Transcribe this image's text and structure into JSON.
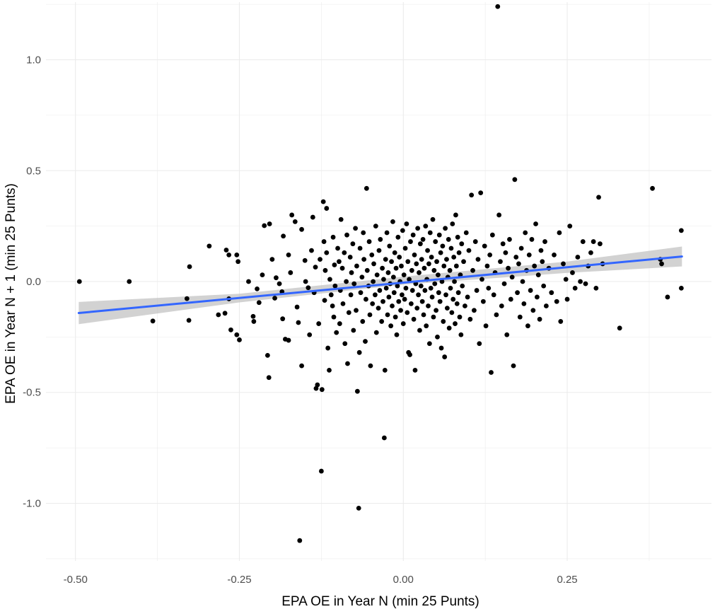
{
  "chart_data": {
    "type": "scatter",
    "xlabel": "EPA OE in Year N (min 25 Punts)",
    "ylabel": "EPA OE in Year N + 1 (min 25 Punts)",
    "xlim": [
      -0.545,
      0.47
    ],
    "ylim": [
      -1.26,
      1.26
    ],
    "x_ticks": [
      -0.5,
      -0.25,
      0.0,
      0.25
    ],
    "x_tick_labels": [
      "-0.50",
      "-0.25",
      "0.00",
      "0.25"
    ],
    "y_ticks": [
      -1.0,
      -0.5,
      0.0,
      0.5,
      1.0
    ],
    "y_tick_labels": [
      "-1.0",
      "-0.5",
      "0.0",
      "0.5",
      "1.0"
    ],
    "grid": true,
    "theme": "minimal",
    "colors": {
      "points": "#000000",
      "trend": "#3366ff",
      "band": "#bfbfbf",
      "grid": "#ebebeb"
    },
    "trend_line": {
      "x": [
        -0.495,
        0.425
      ],
      "y": [
        -0.142,
        0.113
      ]
    },
    "confidence_band": {
      "x": [
        -0.495,
        -0.25,
        0.0,
        0.25,
        0.425
      ],
      "upper": [
        -0.092,
        -0.055,
        0.022,
        0.09,
        0.158
      ],
      "lower": [
        -0.192,
        -0.094,
        -0.014,
        0.039,
        0.068
      ]
    },
    "points": [
      [
        -0.494,
        0.0
      ],
      [
        -0.418,
        0.0
      ],
      [
        -0.382,
        -0.178
      ],
      [
        -0.326,
        0.067
      ],
      [
        -0.33,
        -0.077
      ],
      [
        -0.327,
        -0.175
      ],
      [
        -0.296,
        0.16
      ],
      [
        -0.282,
        -0.15
      ],
      [
        -0.272,
        -0.143
      ],
      [
        -0.27,
        0.142
      ],
      [
        -0.266,
        0.12
      ],
      [
        -0.266,
        -0.078
      ],
      [
        -0.263,
        -0.218
      ],
      [
        -0.254,
        0.12
      ],
      [
        -0.252,
        0.09
      ],
      [
        -0.254,
        -0.24
      ],
      [
        -0.25,
        -0.263
      ],
      [
        -0.236,
        0.0
      ],
      [
        -0.229,
        -0.157
      ],
      [
        -0.228,
        -0.18
      ],
      [
        -0.223,
        -0.033
      ],
      [
        -0.22,
        -0.095
      ],
      [
        -0.215,
        0.03
      ],
      [
        -0.212,
        0.252
      ],
      [
        -0.207,
        -0.333
      ],
      [
        -0.205,
        -0.433
      ],
      [
        -0.204,
        0.26
      ],
      [
        -0.2,
        0.1
      ],
      [
        -0.196,
        -0.075
      ],
      [
        -0.194,
        0.017
      ],
      [
        -0.189,
        -0.01
      ],
      [
        -0.185,
        -0.046
      ],
      [
        -0.184,
        -0.168
      ],
      [
        -0.183,
        0.205
      ],
      [
        -0.18,
        -0.26
      ],
      [
        -0.175,
        -0.265
      ],
      [
        -0.175,
        0.12
      ],
      [
        -0.172,
        0.04
      ],
      [
        -0.17,
        0.3
      ],
      [
        -0.165,
        0.27
      ],
      [
        -0.162,
        -0.115
      ],
      [
        -0.16,
        -0.185
      ],
      [
        -0.158,
        -1.168
      ],
      [
        -0.155,
        -0.38
      ],
      [
        -0.155,
        0.235
      ],
      [
        -0.15,
        0.095
      ],
      [
        -0.149,
        0.0
      ],
      [
        -0.145,
        -0.028
      ],
      [
        -0.143,
        -0.24
      ],
      [
        -0.14,
        0.14
      ],
      [
        -0.138,
        0.29
      ],
      [
        -0.136,
        -0.05
      ],
      [
        -0.134,
        0.065
      ],
      [
        -0.133,
        -0.482
      ],
      [
        -0.131,
        -0.466
      ],
      [
        -0.129,
        -0.19
      ],
      [
        -0.127,
        0.1
      ],
      [
        -0.125,
        -0.855
      ],
      [
        -0.124,
        -0.487
      ],
      [
        -0.122,
        0.36
      ],
      [
        -0.121,
        0.18
      ],
      [
        -0.12,
        -0.085
      ],
      [
        -0.119,
        0.05
      ],
      [
        -0.117,
        0.33
      ],
      [
        -0.117,
        0.13
      ],
      [
        -0.115,
        -0.3
      ],
      [
        -0.113,
        -0.4
      ],
      [
        -0.112,
        0.01
      ],
      [
        -0.11,
        -0.06
      ],
      [
        -0.108,
        -0.11
      ],
      [
        -0.107,
        0.2
      ],
      [
        -0.106,
        -0.16
      ],
      [
        -0.105,
        0.075
      ],
      [
        -0.104,
        -0.02
      ],
      [
        -0.102,
        -0.23
      ],
      [
        -0.1,
        0.15
      ],
      [
        -0.098,
        0.09
      ],
      [
        -0.097,
        -0.19
      ],
      [
        -0.096,
        -0.04
      ],
      [
        -0.095,
        0.28
      ],
      [
        -0.093,
        0.06
      ],
      [
        -0.092,
        -0.1
      ],
      [
        -0.09,
        0.13
      ],
      [
        -0.089,
        -0.28
      ],
      [
        -0.087,
        0.0
      ],
      [
        -0.086,
        0.21
      ],
      [
        -0.085,
        -0.37
      ],
      [
        -0.083,
        -0.14
      ],
      [
        -0.081,
        0.11
      ],
      [
        -0.08,
        -0.06
      ],
      [
        -0.079,
        0.04
      ],
      [
        -0.077,
        0.17
      ],
      [
        -0.076,
        -0.22
      ],
      [
        -0.075,
        -0.01
      ],
      [
        -0.073,
        0.24
      ],
      [
        -0.072,
        -0.13
      ],
      [
        -0.071,
        0.07
      ],
      [
        -0.07,
        -0.495
      ],
      [
        -0.068,
        -1.022
      ],
      [
        -0.067,
        -0.32
      ],
      [
        -0.066,
        0.15
      ],
      [
        -0.065,
        -0.05
      ],
      [
        -0.063,
        0.02
      ],
      [
        -0.062,
        -0.18
      ],
      [
        -0.061,
        0.22
      ],
      [
        -0.06,
        0.1
      ],
      [
        -0.058,
        -0.27
      ],
      [
        -0.057,
        -0.08
      ],
      [
        -0.056,
        0.42
      ],
      [
        -0.055,
        0.05
      ],
      [
        -0.053,
        -0.02
      ],
      [
        -0.052,
        0.18
      ],
      [
        -0.051,
        -0.15
      ],
      [
        -0.05,
        -0.38
      ],
      [
        -0.048,
        0.12
      ],
      [
        -0.047,
        -0.1
      ],
      [
        -0.046,
        0.0
      ],
      [
        -0.045,
        0.08
      ],
      [
        -0.043,
        -0.06
      ],
      [
        -0.042,
        0.25
      ],
      [
        -0.041,
        -0.23
      ],
      [
        -0.04,
        0.03
      ],
      [
        -0.038,
        -0.12
      ],
      [
        -0.037,
        0.14
      ],
      [
        -0.036,
        -0.04
      ],
      [
        -0.035,
        0.19
      ],
      [
        -0.033,
        -0.18
      ],
      [
        -0.032,
        0.06
      ],
      [
        -0.031,
        -0.09
      ],
      [
        -0.03,
        0.01
      ],
      [
        -0.029,
        -0.705
      ],
      [
        -0.028,
        -0.4
      ],
      [
        -0.027,
        0.1
      ],
      [
        -0.026,
        -0.03
      ],
      [
        -0.025,
        0.22
      ],
      [
        -0.024,
        -0.15
      ],
      [
        -0.023,
        0.04
      ],
      [
        -0.022,
        -0.07
      ],
      [
        -0.021,
        0.16
      ],
      [
        -0.02,
        -0.01
      ],
      [
        -0.019,
        -0.2
      ],
      [
        -0.018,
        0.09
      ],
      [
        -0.017,
        -0.11
      ],
      [
        -0.016,
        0.27
      ],
      [
        -0.015,
        0.02
      ],
      [
        -0.014,
        -0.05
      ],
      [
        -0.013,
        0.13
      ],
      [
        -0.012,
        -0.16
      ],
      [
        -0.011,
        0.06
      ],
      [
        -0.01,
        -0.24
      ],
      [
        -0.009,
        -0.02
      ],
      [
        -0.008,
        0.2
      ],
      [
        -0.007,
        -0.09
      ],
      [
        -0.006,
        0.11
      ],
      [
        -0.005,
        0.0
      ],
      [
        -0.004,
        -0.13
      ],
      [
        -0.003,
        0.07
      ],
      [
        -0.002,
        -0.06
      ],
      [
        -0.001,
        0.23
      ],
      [
        0.0,
        -0.19
      ],
      [
        0.001,
        0.03
      ],
      [
        0.002,
        -0.08
      ],
      [
        0.003,
        0.15
      ],
      [
        0.004,
        -0.03
      ],
      [
        0.005,
        0.26
      ],
      [
        0.006,
        -0.14
      ],
      [
        0.007,
        0.09
      ],
      [
        0.008,
        -0.32
      ],
      [
        0.009,
        0.01
      ],
      [
        0.01,
        -0.33
      ],
      [
        0.011,
        0.18
      ],
      [
        0.012,
        -0.1
      ],
      [
        0.013,
        0.05
      ],
      [
        0.014,
        -0.04
      ],
      [
        0.015,
        0.21
      ],
      [
        0.016,
        -0.17
      ],
      [
        0.017,
        0.12
      ],
      [
        0.018,
        -0.4
      ],
      [
        0.019,
        -0.01
      ],
      [
        0.02,
        0.08
      ],
      [
        0.021,
        -0.12
      ],
      [
        0.022,
        0.24
      ],
      [
        0.023,
        -0.06
      ],
      [
        0.024,
        0.04
      ],
      [
        0.025,
        -0.22
      ],
      [
        0.026,
        0.17
      ],
      [
        0.027,
        -0.02
      ],
      [
        0.028,
        0.1
      ],
      [
        0.029,
        -0.09
      ],
      [
        0.03,
        0.19
      ],
      [
        0.031,
        -0.15
      ],
      [
        0.032,
        0.06
      ],
      [
        0.033,
        -0.04
      ],
      [
        0.034,
        0.25
      ],
      [
        0.035,
        -0.2
      ],
      [
        0.036,
        0.01
      ],
      [
        0.037,
        0.14
      ],
      [
        0.038,
        -0.11
      ],
      [
        0.039,
        0.08
      ],
      [
        0.04,
        -0.28
      ],
      [
        0.041,
        0.22
      ],
      [
        0.042,
        -0.03
      ],
      [
        0.043,
        0.11
      ],
      [
        0.044,
        -0.07
      ],
      [
        0.045,
        0.28
      ],
      [
        0.046,
        -0.16
      ],
      [
        0.047,
        0.05
      ],
      [
        0.048,
        -0.01
      ],
      [
        0.049,
        0.18
      ],
      [
        0.05,
        -0.13
      ],
      [
        0.051,
        0.09
      ],
      [
        0.052,
        -0.25
      ],
      [
        0.053,
        0.03
      ],
      [
        0.054,
        -0.05
      ],
      [
        0.055,
        0.21
      ],
      [
        0.056,
        -0.09
      ],
      [
        0.057,
        0.13
      ],
      [
        0.058,
        -0.3
      ],
      [
        0.059,
        0.0
      ],
      [
        0.06,
        0.16
      ],
      [
        0.061,
        -0.18
      ],
      [
        0.062,
        0.07
      ],
      [
        0.063,
        -0.34
      ],
      [
        0.064,
        0.24
      ],
      [
        0.065,
        -0.06
      ],
      [
        0.066,
        0.1
      ],
      [
        0.067,
        -0.12
      ],
      [
        0.068,
        0.02
      ],
      [
        0.069,
        0.19
      ],
      [
        0.07,
        -0.21
      ],
      [
        0.071,
        0.05
      ],
      [
        0.072,
        -0.03
      ],
      [
        0.073,
        0.15
      ],
      [
        0.074,
        -0.14
      ],
      [
        0.075,
        0.26
      ],
      [
        0.076,
        -0.08
      ],
      [
        0.077,
        0.11
      ],
      [
        0.078,
        0.0
      ],
      [
        0.079,
        -0.19
      ],
      [
        0.08,
        0.3
      ],
      [
        0.081,
        0.07
      ],
      [
        0.082,
        -0.1
      ],
      [
        0.083,
        0.2
      ],
      [
        0.084,
        -0.05
      ],
      [
        0.085,
        0.13
      ],
      [
        0.086,
        -0.16
      ],
      [
        0.087,
        0.03
      ],
      [
        0.088,
        -0.24
      ],
      [
        0.089,
        0.17
      ],
      [
        0.09,
        -0.02
      ],
      [
        0.092,
        0.09
      ],
      [
        0.094,
        -0.11
      ],
      [
        0.096,
        0.22
      ],
      [
        0.098,
        -0.07
      ],
      [
        0.1,
        0.14
      ],
      [
        0.102,
        -0.17
      ],
      [
        0.104,
        0.39
      ],
      [
        0.106,
        0.05
      ],
      [
        0.108,
        -0.13
      ],
      [
        0.11,
        0.18
      ],
      [
        0.112,
        -0.04
      ],
      [
        0.114,
        0.1
      ],
      [
        0.116,
        -0.28
      ],
      [
        0.118,
        0.4
      ],
      [
        0.12,
        0.01
      ],
      [
        0.122,
        -0.09
      ],
      [
        0.124,
        0.16
      ],
      [
        0.126,
        -0.2
      ],
      [
        0.128,
        0.07
      ],
      [
        0.13,
        -0.03
      ],
      [
        0.132,
        0.12
      ],
      [
        0.134,
        -0.41
      ],
      [
        0.136,
        0.21
      ],
      [
        0.138,
        -0.06
      ],
      [
        0.14,
        0.04
      ],
      [
        0.142,
        -0.15
      ],
      [
        0.144,
        1.24
      ],
      [
        0.146,
        0.3
      ],
      [
        0.148,
        0.09
      ],
      [
        0.15,
        -0.11
      ],
      [
        0.152,
        0.17
      ],
      [
        0.154,
        -0.01
      ],
      [
        0.156,
        0.13
      ],
      [
        0.158,
        -0.24
      ],
      [
        0.16,
        0.06
      ],
      [
        0.162,
        0.19
      ],
      [
        0.164,
        -0.08
      ],
      [
        0.166,
        0.02
      ],
      [
        0.168,
        -0.38
      ],
      [
        0.17,
        0.46
      ],
      [
        0.172,
        0.11
      ],
      [
        0.174,
        -0.05
      ],
      [
        0.176,
        0.08
      ],
      [
        0.178,
        -0.16
      ],
      [
        0.18,
        0.15
      ],
      [
        0.182,
        0.0
      ],
      [
        0.184,
        -0.1
      ],
      [
        0.186,
        0.22
      ],
      [
        0.188,
        0.05
      ],
      [
        0.19,
        -0.2
      ],
      [
        0.192,
        0.12
      ],
      [
        0.194,
        -0.04
      ],
      [
        0.196,
        0.19
      ],
      [
        0.198,
        -0.13
      ],
      [
        0.2,
        0.07
      ],
      [
        0.202,
        0.26
      ],
      [
        0.204,
        -0.07
      ],
      [
        0.206,
        0.03
      ],
      [
        0.208,
        -0.17
      ],
      [
        0.21,
        0.14
      ],
      [
        0.212,
        0.09
      ],
      [
        0.214,
        -0.02
      ],
      [
        0.216,
        0.18
      ],
      [
        0.218,
        -0.11
      ],
      [
        0.222,
        0.06
      ],
      [
        0.226,
        -0.05
      ],
      [
        0.23,
        0.12
      ],
      [
        0.234,
        -0.09
      ],
      [
        0.238,
        0.22
      ],
      [
        0.24,
        -0.18
      ],
      [
        0.244,
        0.08
      ],
      [
        0.248,
        0.01
      ],
      [
        0.25,
        -0.08
      ],
      [
        0.254,
        0.25
      ],
      [
        0.258,
        0.04
      ],
      [
        0.262,
        -0.03
      ],
      [
        0.266,
        0.11
      ],
      [
        0.27,
        0.0
      ],
      [
        0.274,
        0.18
      ],
      [
        0.278,
        -0.01
      ],
      [
        0.282,
        0.07
      ],
      [
        0.286,
        0.13
      ],
      [
        0.29,
        0.18
      ],
      [
        0.294,
        -0.03
      ],
      [
        0.298,
        0.38
      ],
      [
        0.3,
        0.17
      ],
      [
        0.304,
        0.08
      ],
      [
        0.33,
        -0.21
      ],
      [
        0.38,
        0.42
      ],
      [
        0.392,
        0.1
      ],
      [
        0.394,
        0.08
      ],
      [
        0.403,
        -0.07
      ],
      [
        0.424,
        0.23
      ],
      [
        0.424,
        -0.03
      ]
    ]
  }
}
